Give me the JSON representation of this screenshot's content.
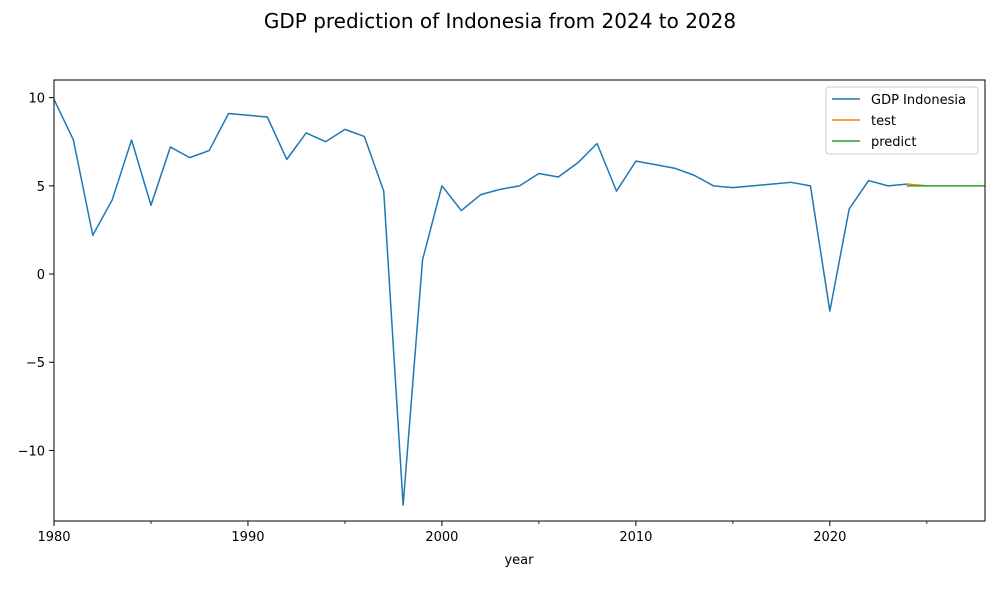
{
  "chart_data": {
    "type": "line",
    "title": "GDP prediction of Indonesia from 2024 to 2028",
    "xlabel": "year",
    "ylabel": "",
    "xlim": [
      1980,
      2028
    ],
    "ylim": [
      -14,
      11
    ],
    "xticks": [
      1980,
      1990,
      2000,
      2010,
      2020
    ],
    "xticklabels": [
      "1980",
      "1990",
      "2000",
      "2010",
      "2020"
    ],
    "xminorticks": [
      1985,
      1995,
      2005,
      2015,
      2025
    ],
    "yticks": [
      -10,
      -5,
      0,
      5,
      10
    ],
    "yticklabels": [
      "−10",
      "−5",
      "0",
      "5",
      "10"
    ],
    "grid": false,
    "legend_position": "top-right",
    "series": [
      {
        "name": "GDP Indonesia",
        "color": "#1f77b4",
        "x": [
          1980,
          1981,
          1982,
          1983,
          1984,
          1985,
          1986,
          1987,
          1988,
          1989,
          1990,
          1991,
          1992,
          1993,
          1994,
          1995,
          1996,
          1997,
          1998,
          1999,
          2000,
          2001,
          2002,
          2003,
          2004,
          2005,
          2006,
          2007,
          2008,
          2009,
          2010,
          2011,
          2012,
          2013,
          2014,
          2015,
          2016,
          2017,
          2018,
          2019,
          2020,
          2021,
          2022,
          2023,
          2024
        ],
        "values": [
          9.9,
          7.6,
          2.2,
          4.2,
          7.6,
          3.9,
          7.2,
          6.6,
          7.0,
          9.1,
          9.0,
          8.9,
          6.5,
          8.0,
          7.5,
          8.2,
          7.8,
          4.7,
          -13.1,
          0.8,
          5.0,
          3.6,
          4.5,
          4.8,
          5.0,
          5.7,
          5.5,
          6.3,
          7.4,
          4.7,
          6.4,
          6.2,
          6.0,
          5.6,
          5.0,
          4.9,
          5.0,
          5.1,
          5.2,
          5.0,
          -2.1,
          3.7,
          5.3,
          5.0,
          5.1
        ]
      },
      {
        "name": "test",
        "color": "#ff7f0e",
        "x": [
          2024,
          2025
        ],
        "values": [
          5.1,
          5.0
        ]
      },
      {
        "name": "predict",
        "color": "#2ca02c",
        "x": [
          2024,
          2025,
          2026,
          2027,
          2028
        ],
        "values": [
          5.0,
          5.0,
          5.0,
          5.0,
          5.0
        ]
      }
    ]
  }
}
